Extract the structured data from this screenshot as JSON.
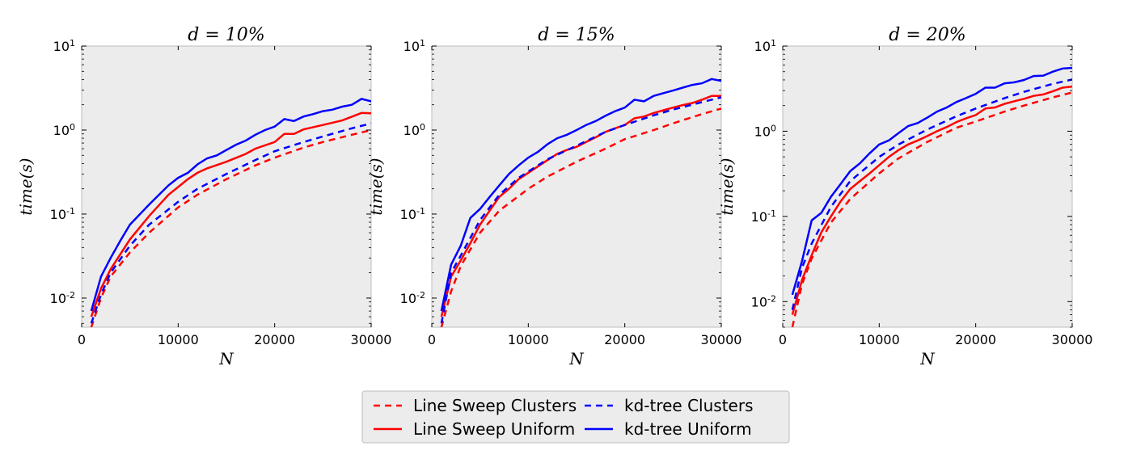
{
  "figure": {
    "legend": {
      "placement": "bottom-center",
      "entries": [
        {
          "label": "Line Sweep Clusters",
          "color": "#ff0000",
          "dash": "dashed"
        },
        {
          "label": "kd-tree Clusters",
          "color": "#0000ff",
          "dash": "dashed"
        },
        {
          "label": "Line Sweep Uniform",
          "color": "#ff0000",
          "dash": "solid"
        },
        {
          "label": "kd-tree Uniform",
          "color": "#0000ff",
          "dash": "solid"
        }
      ]
    },
    "panel_background": "#ececec"
  },
  "chart_data": [
    {
      "type": "line",
      "title": "d = 10%",
      "xlabel": "N",
      "ylabel": "time(s)",
      "xlim": [
        0,
        30000
      ],
      "ylim": [
        0.0045,
        10
      ],
      "yscale": "log",
      "x_ticks": [
        "0",
        "10000",
        "20000",
        "30000"
      ],
      "y_ticks": [
        {
          "base": "10",
          "exp": "-2"
        },
        {
          "base": "10",
          "exp": "-1"
        },
        {
          "base": "10",
          "exp": "0"
        },
        {
          "base": "10",
          "exp": "1"
        }
      ],
      "grid": false,
      "series": [
        {
          "name": "Line Sweep Clusters",
          "color": "#ff0000",
          "dash": "dashed",
          "x": [
            1000,
            2000,
            3000,
            5000,
            7000,
            10000,
            12000,
            15000,
            18000,
            20000,
            23000,
            25000,
            28000,
            30000
          ],
          "y": [
            0.0045,
            0.01,
            0.018,
            0.035,
            0.06,
            0.12,
            0.17,
            0.26,
            0.38,
            0.47,
            0.62,
            0.72,
            0.88,
            1.0
          ]
        },
        {
          "name": "Line Sweep Uniform",
          "color": "#ff0000",
          "dash": "solid",
          "x": [
            1000,
            2000,
            3000,
            5000,
            7000,
            9000,
            10000,
            11000,
            12000,
            13000,
            15000,
            17000,
            18000,
            20000,
            21000,
            22000,
            23000,
            25000,
            27000,
            29000,
            30000
          ],
          "y": [
            0.006,
            0.013,
            0.022,
            0.05,
            0.095,
            0.17,
            0.21,
            0.26,
            0.31,
            0.35,
            0.42,
            0.52,
            0.6,
            0.72,
            0.9,
            0.9,
            1.02,
            1.15,
            1.3,
            1.6,
            1.58
          ]
        },
        {
          "name": "kd-tree Clusters",
          "color": "#0000ff",
          "dash": "dashed",
          "x": [
            1000,
            2000,
            3000,
            5000,
            7000,
            10000,
            12000,
            15000,
            18000,
            20000,
            23000,
            25000,
            28000,
            30000
          ],
          "y": [
            0.005,
            0.011,
            0.02,
            0.042,
            0.075,
            0.14,
            0.2,
            0.3,
            0.44,
            0.56,
            0.72,
            0.84,
            1.05,
            1.2
          ]
        },
        {
          "name": "kd-tree Uniform",
          "color": "#0000ff",
          "dash": "solid",
          "x": [
            1000,
            2000,
            3000,
            4000,
            5000,
            7000,
            9000,
            10000,
            11000,
            12000,
            13000,
            14000,
            15000,
            16000,
            17000,
            18000,
            19000,
            20000,
            21000,
            22000,
            23000,
            24000,
            25000,
            26000,
            27000,
            28000,
            29000,
            30000
          ],
          "y": [
            0.007,
            0.018,
            0.03,
            0.048,
            0.075,
            0.13,
            0.22,
            0.27,
            0.31,
            0.39,
            0.46,
            0.5,
            0.58,
            0.67,
            0.75,
            0.88,
            1.0,
            1.1,
            1.35,
            1.28,
            1.45,
            1.55,
            1.68,
            1.75,
            1.9,
            2.0,
            2.35,
            2.2
          ]
        }
      ]
    },
    {
      "type": "line",
      "title": "d = 15%",
      "xlabel": "N",
      "ylabel": "time(s)",
      "xlim": [
        0,
        30000
      ],
      "ylim": [
        0.0045,
        10
      ],
      "yscale": "log",
      "x_ticks": [
        "0",
        "10000",
        "20000",
        "30000"
      ],
      "y_ticks": [
        {
          "base": "10",
          "exp": "-2"
        },
        {
          "base": "10",
          "exp": "-1"
        },
        {
          "base": "10",
          "exp": "0"
        },
        {
          "base": "10",
          "exp": "1"
        }
      ],
      "grid": false,
      "series": [
        {
          "name": "Line Sweep Clusters",
          "color": "#ff0000",
          "dash": "dashed",
          "x": [
            1000,
            2000,
            3000,
            5000,
            7000,
            10000,
            12000,
            15000,
            18000,
            20000,
            23000,
            25000,
            28000,
            30000
          ],
          "y": [
            0.0045,
            0.012,
            0.024,
            0.06,
            0.11,
            0.2,
            0.28,
            0.42,
            0.6,
            0.78,
            1.0,
            1.2,
            1.55,
            1.8
          ]
        },
        {
          "name": "Line Sweep Uniform",
          "color": "#ff0000",
          "dash": "solid",
          "x": [
            1000,
            2000,
            3000,
            4000,
            5000,
            6000,
            7000,
            8000,
            9000,
            10000,
            11000,
            12000,
            13000,
            14000,
            15000,
            16000,
            17000,
            18000,
            19000,
            20000,
            21000,
            22000,
            23000,
            24000,
            25000,
            26000,
            27000,
            28000,
            29000,
            30000
          ],
          "y": [
            0.006,
            0.018,
            0.028,
            0.045,
            0.075,
            0.11,
            0.16,
            0.2,
            0.26,
            0.31,
            0.37,
            0.44,
            0.52,
            0.58,
            0.63,
            0.72,
            0.82,
            0.95,
            1.05,
            1.15,
            1.38,
            1.45,
            1.6,
            1.72,
            1.85,
            1.98,
            2.1,
            2.3,
            2.55,
            2.55
          ]
        },
        {
          "name": "kd-tree Clusters",
          "color": "#0000ff",
          "dash": "dashed",
          "x": [
            1000,
            2000,
            3000,
            5000,
            7000,
            9000,
            10000,
            12000,
            15000,
            18000,
            20000,
            23000,
            25000,
            28000,
            30000
          ],
          "y": [
            0.005,
            0.02,
            0.032,
            0.085,
            0.17,
            0.27,
            0.32,
            0.45,
            0.65,
            0.95,
            1.15,
            1.5,
            1.75,
            2.15,
            2.45
          ]
        },
        {
          "name": "kd-tree Uniform",
          "color": "#0000ff",
          "dash": "solid",
          "x": [
            1000,
            2000,
            3000,
            4000,
            5000,
            6000,
            7000,
            8000,
            9000,
            10000,
            11000,
            12000,
            13000,
            14000,
            15000,
            16000,
            17000,
            18000,
            19000,
            20000,
            21000,
            22000,
            23000,
            24000,
            25000,
            26000,
            27000,
            28000,
            29000,
            30000
          ],
          "y": [
            0.007,
            0.025,
            0.042,
            0.09,
            0.115,
            0.16,
            0.22,
            0.3,
            0.38,
            0.47,
            0.55,
            0.68,
            0.8,
            0.88,
            1.0,
            1.15,
            1.28,
            1.48,
            1.68,
            1.85,
            2.3,
            2.2,
            2.55,
            2.75,
            2.95,
            3.2,
            3.45,
            3.6,
            4.05,
            3.85
          ]
        }
      ]
    },
    {
      "type": "line",
      "title": "d = 20%",
      "xlabel": "N",
      "ylabel": "time(s)",
      "xlim": [
        0,
        30000
      ],
      "ylim": [
        0.005,
        10
      ],
      "yscale": "log",
      "x_ticks": [
        "0",
        "10000",
        "20000",
        "30000"
      ],
      "y_ticks": [
        {
          "base": "10",
          "exp": "-2"
        },
        {
          "base": "10",
          "exp": "-1"
        },
        {
          "base": "10",
          "exp": "0"
        },
        {
          "base": "10",
          "exp": "1"
        }
      ],
      "grid": false,
      "series": [
        {
          "name": "Line Sweep Clusters",
          "color": "#ff0000",
          "dash": "dashed",
          "x": [
            1000,
            2000,
            3000,
            5000,
            7000,
            10000,
            12000,
            15000,
            18000,
            20000,
            23000,
            25000,
            28000,
            30000
          ],
          "y": [
            0.005,
            0.016,
            0.032,
            0.085,
            0.16,
            0.32,
            0.48,
            0.75,
            1.1,
            1.3,
            1.7,
            2.0,
            2.5,
            2.85
          ]
        },
        {
          "name": "Line Sweep Uniform",
          "color": "#ff0000",
          "dash": "solid",
          "x": [
            1000,
            2000,
            3000,
            4000,
            5000,
            6000,
            7000,
            8000,
            9000,
            10000,
            11000,
            12000,
            13000,
            14000,
            15000,
            16000,
            17000,
            18000,
            19000,
            20000,
            21000,
            22000,
            23000,
            24000,
            25000,
            26000,
            27000,
            28000,
            29000,
            30000
          ],
          "y": [
            0.007,
            0.018,
            0.035,
            0.065,
            0.1,
            0.15,
            0.21,
            0.26,
            0.32,
            0.4,
            0.5,
            0.6,
            0.7,
            0.78,
            0.88,
            1.0,
            1.12,
            1.28,
            1.42,
            1.55,
            1.85,
            1.9,
            2.1,
            2.25,
            2.4,
            2.6,
            2.7,
            2.95,
            3.25,
            3.35
          ]
        },
        {
          "name": "kd-tree Clusters",
          "color": "#0000ff",
          "dash": "dashed",
          "x": [
            1000,
            2000,
            3000,
            5000,
            7000,
            10000,
            12000,
            15000,
            18000,
            20000,
            23000,
            25000,
            28000,
            30000
          ],
          "y": [
            0.008,
            0.025,
            0.048,
            0.13,
            0.26,
            0.5,
            0.7,
            1.05,
            1.5,
            1.85,
            2.45,
            2.9,
            3.6,
            4.05
          ]
        },
        {
          "name": "kd-tree Uniform",
          "color": "#0000ff",
          "dash": "solid",
          "x": [
            1000,
            2000,
            3000,
            4000,
            5000,
            6000,
            7000,
            8000,
            9000,
            10000,
            11000,
            12000,
            13000,
            14000,
            15000,
            16000,
            17000,
            18000,
            19000,
            20000,
            21000,
            22000,
            23000,
            24000,
            25000,
            26000,
            27000,
            28000,
            29000,
            30000
          ],
          "y": [
            0.012,
            0.03,
            0.09,
            0.11,
            0.17,
            0.24,
            0.34,
            0.42,
            0.55,
            0.7,
            0.78,
            0.95,
            1.15,
            1.25,
            1.45,
            1.7,
            1.9,
            2.2,
            2.45,
            2.75,
            3.25,
            3.25,
            3.65,
            3.75,
            4.0,
            4.45,
            4.5,
            5.0,
            5.45,
            5.55
          ]
        }
      ]
    }
  ]
}
